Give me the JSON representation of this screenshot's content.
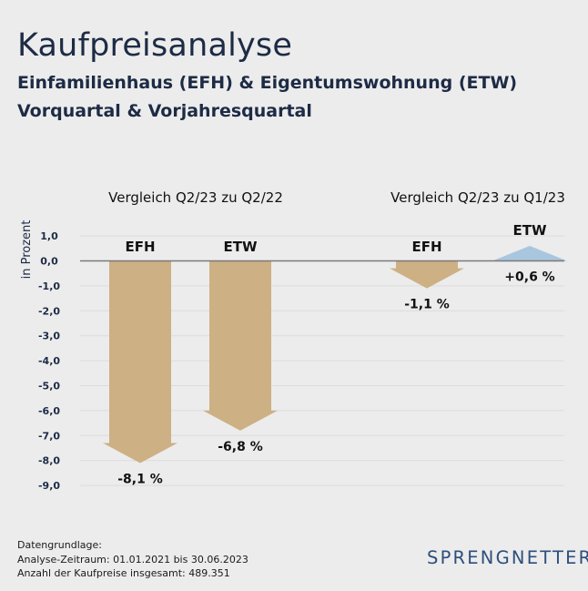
{
  "header": {
    "title": "Kaufpreisanalyse",
    "subtitle_line1": "Einfamilienhaus (EFH) & Eigentumswohnung (ETW)",
    "subtitle_line2": "Vorquartal & Vorjahresquartal"
  },
  "colors": {
    "negative": "#cdb083",
    "positive": "#a9c6df",
    "text": "#1d2b45",
    "logo": "#2d4f7c",
    "background": "#ececec"
  },
  "chart_data": {
    "type": "bar",
    "ylabel": "in Prozent",
    "ylim": [
      -9.0,
      1.0
    ],
    "yticks": [
      "1,0",
      "0,0",
      "-1,0",
      "-2,0",
      "-3,0",
      "-4,0",
      "-5,0",
      "-6,0",
      "-7,0",
      "-8,0",
      "-9,0"
    ],
    "ytick_values": [
      1,
      0,
      -1,
      -2,
      -3,
      -4,
      -5,
      -6,
      -7,
      -8,
      -9
    ],
    "groups": [
      {
        "title": "Vergleich Q2/23 zu Q2/22",
        "bars": [
          {
            "category": "EFH",
            "value": -8.1,
            "label": "-8,1 %"
          },
          {
            "category": "ETW",
            "value": -6.8,
            "label": "-6,8 %"
          }
        ]
      },
      {
        "title": "Vergleich Q2/23 zu Q1/23",
        "bars": [
          {
            "category": "EFH",
            "value": -1.1,
            "label": "-1,1 %"
          },
          {
            "category": "ETW",
            "value": 0.6,
            "label": "+0,6 %"
          }
        ]
      }
    ]
  },
  "footer": {
    "line1": "Datengrundlage:",
    "line2": "Analyse-Zeitraum: 01.01.2021 bis 30.06.2023",
    "line3": "Anzahl der Kaufpreise insgesamt: 489.351"
  },
  "logo": {
    "text": "SPRENGNETTER"
  }
}
